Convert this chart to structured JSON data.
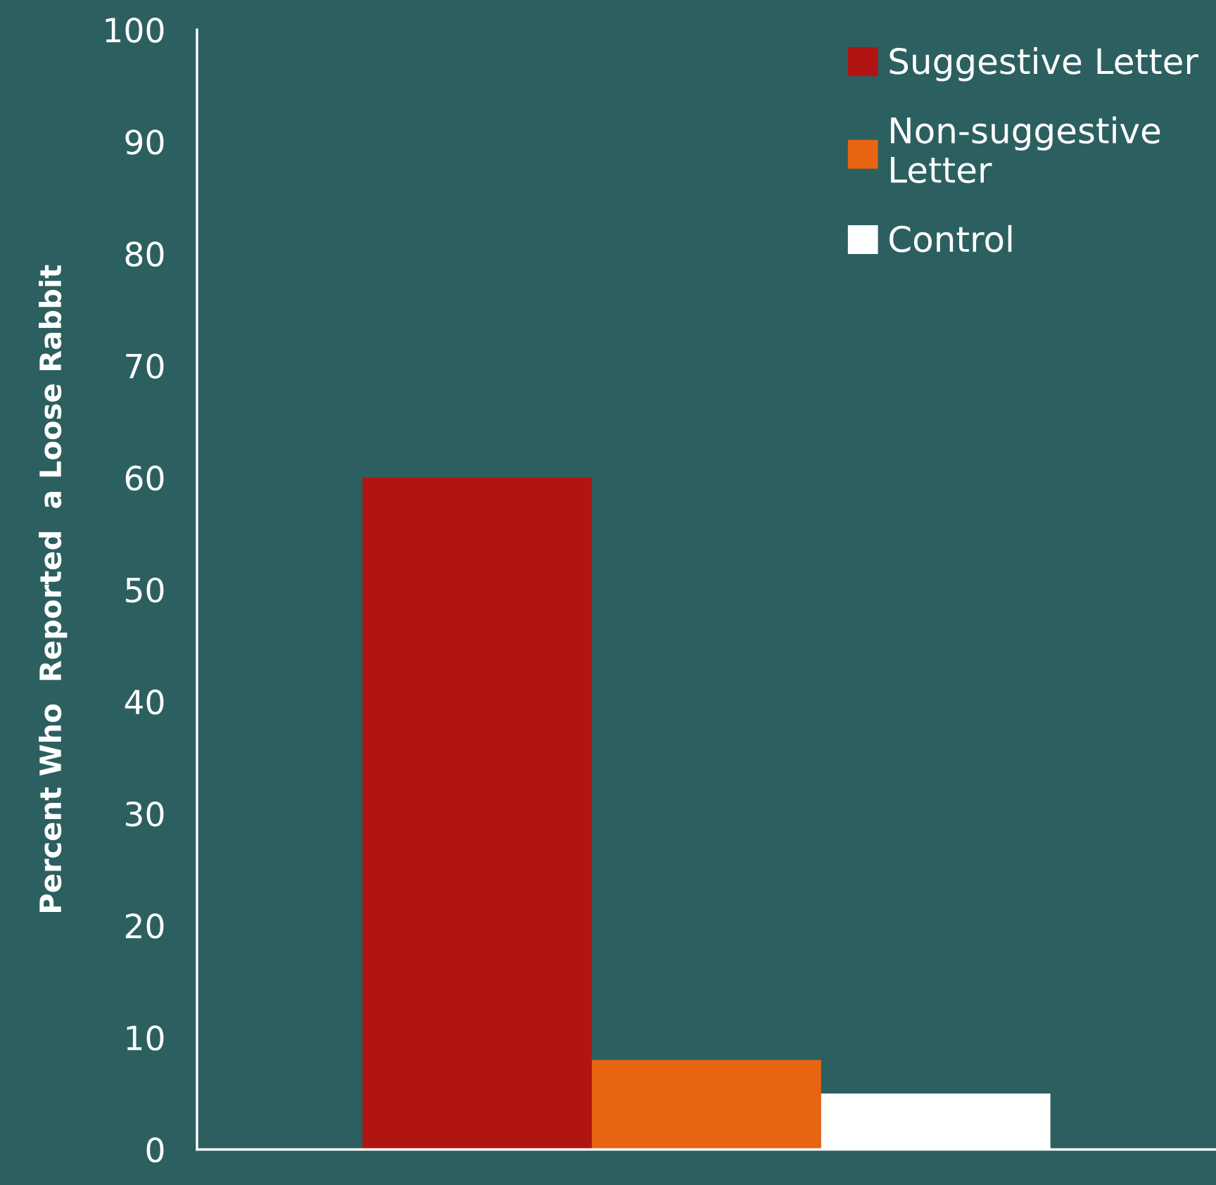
{
  "chart_data": {
    "type": "bar",
    "ylabel": "Percent Who  Reported  a Loose Rabbit",
    "categories": [
      null
    ],
    "series": [
      {
        "name": "Suggestive Letter",
        "color": "#b01513",
        "values": [
          60
        ]
      },
      {
        "name": "Non-suggestive\nLetter",
        "color": "#e86412",
        "values": [
          8
        ]
      },
      {
        "name": "Control",
        "color": "#ffffff",
        "values": [
          5
        ]
      }
    ],
    "ylim": [
      0,
      100
    ],
    "yticks": [
      0,
      10,
      20,
      30,
      40,
      50,
      60,
      70,
      80,
      90,
      100
    ],
    "grid": false,
    "legend": "top right"
  }
}
